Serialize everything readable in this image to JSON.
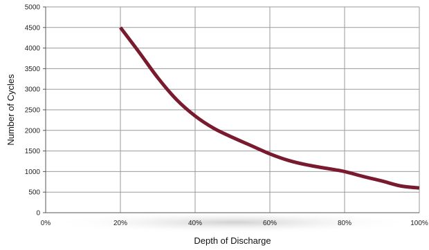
{
  "chart_data": {
    "type": "line",
    "title": "",
    "xlabel": "Depth of Discharge",
    "ylabel": "Number of Cycles",
    "xlim": [
      0,
      100
    ],
    "ylim": [
      0,
      5000
    ],
    "x_ticks": [
      0,
      20,
      40,
      60,
      80,
      100
    ],
    "x_tick_labels": [
      "0%",
      "20%",
      "40%",
      "60%",
      "80%",
      "100%"
    ],
    "y_ticks": [
      0,
      500,
      1000,
      1500,
      2000,
      2500,
      3000,
      3500,
      4000,
      4500,
      5000
    ],
    "y_tick_labels": [
      "0",
      "500",
      "1000",
      "1500",
      "2000",
      "2500",
      "3000",
      "3500",
      "4000",
      "4500",
      "5000"
    ],
    "grid": true,
    "series": [
      {
        "x": [
          20,
          25,
          30,
          35,
          40,
          45,
          50,
          55,
          60,
          65,
          70,
          75,
          80,
          85,
          90,
          95,
          100
        ],
        "y": [
          4500,
          3900,
          3280,
          2750,
          2350,
          2050,
          1830,
          1630,
          1430,
          1270,
          1160,
          1080,
          1000,
          880,
          770,
          650,
          600
        ],
        "color": "#7a1a2e"
      }
    ],
    "line_color": "#7a1a2e",
    "grid_color": "#9a9a9a",
    "axis_color": "#555555"
  }
}
